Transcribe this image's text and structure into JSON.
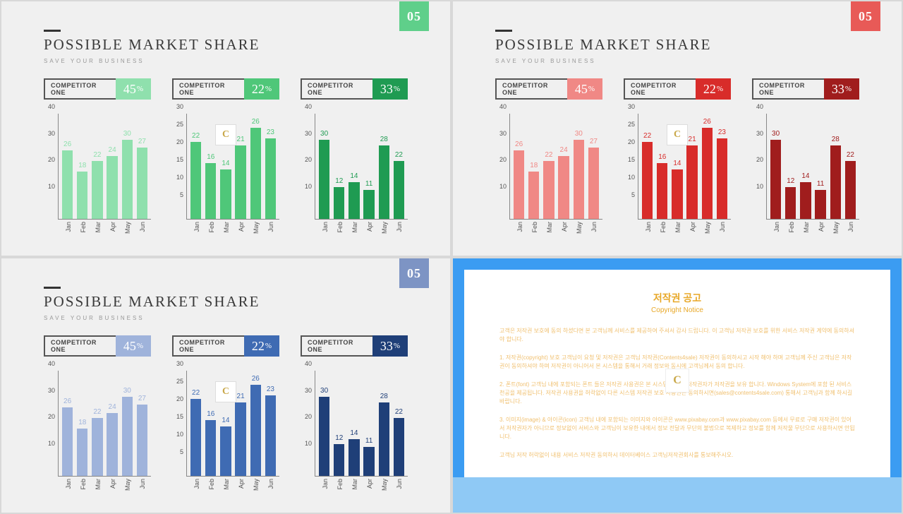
{
  "page_number": "05",
  "title": "POSSIBLE MARKET SHARE",
  "subtitle": "SAVE YOUR BUSINESS",
  "categories": [
    "Jan",
    "Feb",
    "Mar",
    "Apr",
    "May",
    "Jun"
  ],
  "competitors": [
    {
      "label": "COMPETITOR ONE",
      "pct": "45",
      "values": [
        26,
        18,
        22,
        24,
        30,
        27
      ],
      "ymax": 40,
      "ystep": 10
    },
    {
      "label": "COMPETITOR ONE",
      "pct": "22",
      "values": [
        22,
        16,
        14,
        21,
        26,
        23
      ],
      "ymax": 30,
      "ystep": 5
    },
    {
      "label": "COMPETITOR ONE",
      "pct": "33",
      "values": [
        30,
        12,
        14,
        11,
        28,
        22
      ],
      "ymax": 40,
      "ystep": 10
    }
  ],
  "themes": {
    "green": {
      "badge": "#5fcf8a",
      "shades": [
        "#8fe0ad",
        "#4fc779",
        "#1f9b52"
      ]
    },
    "red": {
      "badge": "#e85a57",
      "shades": [
        "#f08885",
        "#d82c2a",
        "#a01d1d"
      ]
    },
    "blue": {
      "badge": "#7d94c4",
      "shades": [
        "#9fb3db",
        "#3f6bb3",
        "#1f3f78"
      ]
    }
  },
  "axis_color": "#888",
  "tick_color": "#555",
  "label_border": "#555",
  "title_color": "#3a3a3a",
  "background": "#f0f0f0",
  "copyright": {
    "title": "저작권 공고",
    "sub": "Copyright Notice",
    "paras": [
      "고객은 저작권 보호에 동의 하셨다면 본 고객님께 서비스를 제공하여 주셔서 감사 드립니다. 이 고객님 저작권 보호를 위한 서비스 저작권 계약에 동의하셔야 합니다.",
      "1. 저작권(copyright) 보호 고객님이 요청 및 저작권은 고객님 저작권(Contents4sale) 저작권이 동의하시고 시작 해야 하며 고객님께 주신 고객님은 저작권이 동의하셔야 하며 저작권이 아니어서 본 시스템을 통해서 거래 정보와 동시에 고객님께서 동의 합니다.",
      "2. 폰트(font) 고객님 내에 포함되는 폰트 들은 저작권 사용권은 본 시스템 내에서 저작권자가 저작권을 보유 합니다. Windows System에 포함 된 서비스 천공을 제공됩니다. 저작권 사용권을 허락없이 다른 시스템 저작권 보호 사용권은 동의하시면(sales@contents4sale.com) 통해서 고객님과 함께 하시길 바랍니다.",
      "3. 이미지(image) & 아이콘(icon) 고객님 내에 포함되는 이미지와 아이콘은 www.pixabay.com과 www.pixabay.com 등에서 무료로 구매 저작권이 있어서 저작권자가 아니므로 정보없이 서비스와 고객님이 보유한 내에서 정보 전달과 무단의 불법으로 복제하고 정보를 함께 저작물 무단으로 사용하시면 안됩니다.",
      "고객님 저작 허락없이 내용 서비스 저작권 동의하시 데이터베이스 고객님저작권회사를 통보해주시오."
    ]
  }
}
